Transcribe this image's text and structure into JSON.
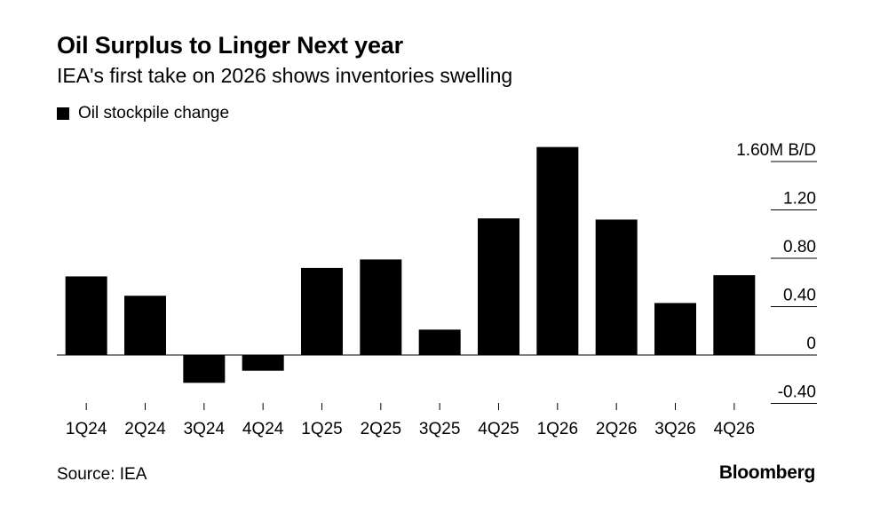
{
  "title": "Oil Surplus to Linger Next year",
  "subtitle": "IEA's first take on 2026 shows inventories swelling",
  "legend": {
    "label": "Oil stockpile change",
    "color": "#000000"
  },
  "source": "Source: IEA",
  "brand": "Bloomberg",
  "chart_data": {
    "type": "bar",
    "title": "Oil Surplus to Linger Next year",
    "subtitle": "IEA's first take on 2026 shows inventories swelling",
    "xlabel": "",
    "ylabel": "M B/D",
    "unit_label": "1.60M B/D",
    "ylim": [
      -0.4,
      1.6
    ],
    "yticks": [
      1.6,
      1.2,
      0.8,
      0.4,
      0,
      -0.4
    ],
    "ytick_labels": [
      "1.60M B/D",
      "1.20",
      "0.80",
      "0.40",
      "0",
      "-0.40"
    ],
    "categories": [
      "1Q24",
      "2Q24",
      "3Q24",
      "4Q24",
      "1Q25",
      "2Q25",
      "3Q25",
      "4Q25",
      "1Q26",
      "2Q26",
      "3Q26",
      "4Q26"
    ],
    "series": [
      {
        "name": "Oil stockpile change",
        "color": "#000000",
        "values": [
          0.65,
          0.49,
          -0.23,
          -0.13,
          0.72,
          0.79,
          0.21,
          1.13,
          1.72,
          1.12,
          0.43,
          0.66
        ]
      }
    ],
    "legend_position": "top-left",
    "grid": false
  }
}
